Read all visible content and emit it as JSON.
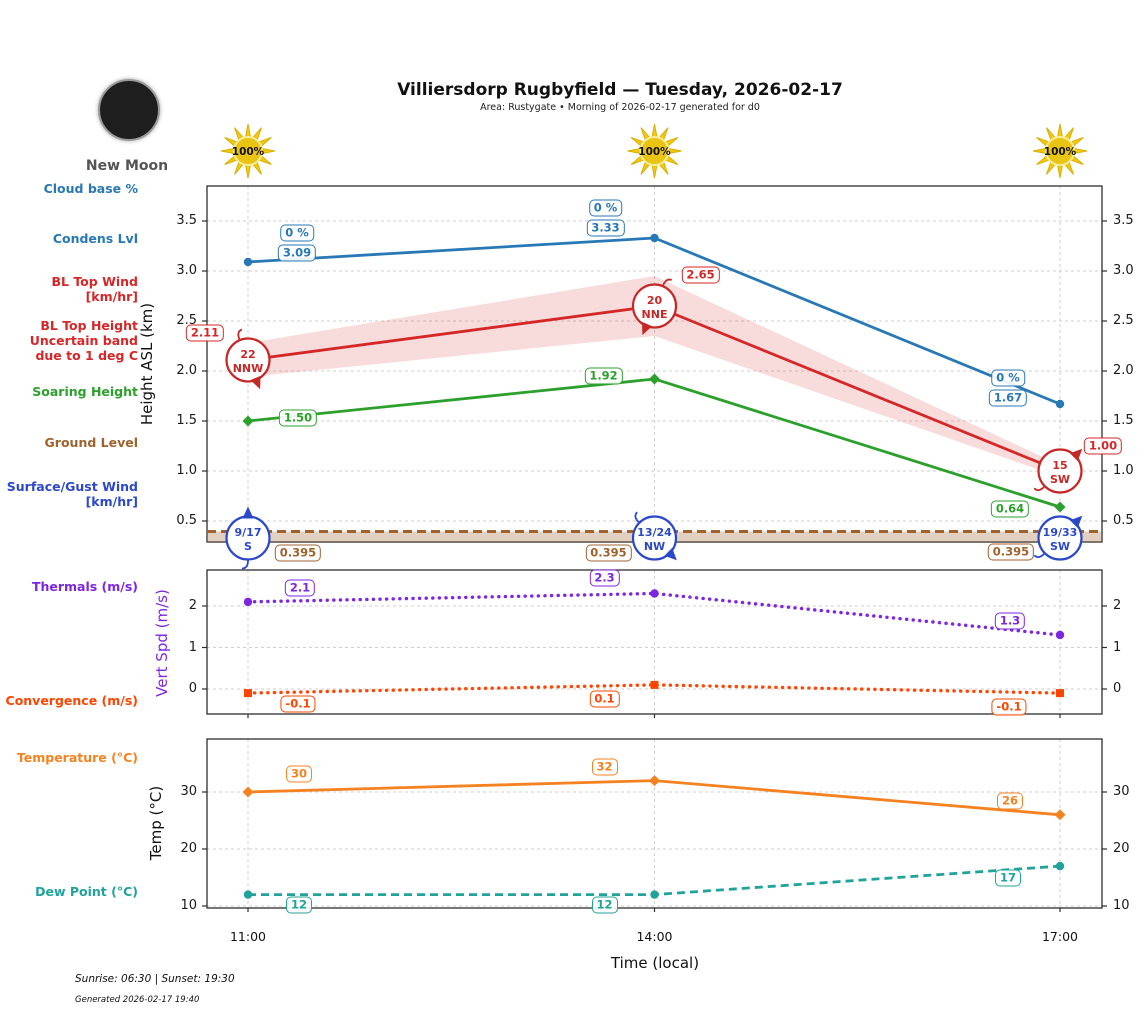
{
  "header": {
    "title": "Villiersdorp Rugbyfield — Tuesday, 2026-02-17",
    "subtitle": "Area: Rustygate • Morning of 2026-02-17 generated for d0"
  },
  "moon": {
    "label": "New Moon",
    "icon": "new-moon-icon"
  },
  "suns": {
    "icon": "sun-icon",
    "labels": [
      "100%",
      "100%",
      "100%"
    ]
  },
  "sidebar": {
    "items": [
      {
        "lines": [
          "Cloud base %"
        ],
        "color": "#2878b5"
      },
      {
        "lines": [
          "Condens Lvl"
        ],
        "color": "#2878b5"
      },
      {
        "lines": [
          "BL Top Wind",
          "[km/hr]"
        ],
        "color": "#d62728"
      },
      {
        "lines": [
          "BL Top Height",
          "Uncertain band",
          "due to 1 deg C"
        ],
        "color": "#d62728"
      },
      {
        "lines": [
          "Soaring Height"
        ],
        "color": "#2ca02c"
      },
      {
        "lines": [
          "Ground Level"
        ],
        "color": "#a0622d"
      },
      {
        "lines": [
          "Surface/Gust Wind",
          "[km/hr]"
        ],
        "color": "#2b48c8"
      },
      {
        "lines": [
          "Thermals (m/s)"
        ],
        "color": "#7d26e0"
      },
      {
        "lines": [
          "Convergence (m/s)"
        ],
        "color": "#ff4500"
      },
      {
        "lines": [
          "Temperature (°C)"
        ],
        "color": "#f58220"
      },
      {
        "lines": [
          "Dew Point (°C)"
        ],
        "color": "#20a39a"
      }
    ]
  },
  "footer": {
    "sunrise_sunset": "Sunrise: 06:30 | Sunset: 19:30",
    "generated": "Generated 2026-02-17 19:40"
  },
  "chart_data": [
    {
      "type": "line",
      "ylabel": "Height ASL (km)",
      "x": [
        "11:00",
        "14:00",
        "17:00"
      ],
      "yticks": [
        "0.5",
        "1.0",
        "1.5",
        "2.0",
        "2.5",
        "3.0",
        "3.5"
      ],
      "grid": true,
      "series": [
        {
          "name": "Condens Lvl",
          "color": "#2878b5",
          "marker": "circle",
          "line": "solid",
          "values": [
            3.09,
            3.33,
            1.67
          ],
          "point_labels": [
            "3.09",
            "3.33",
            "1.67"
          ],
          "cloud_base_pct": [
            "0 %",
            "0 %",
            "0 %"
          ]
        },
        {
          "name": "BL Top Height",
          "color": "#d62728",
          "line": "solid",
          "values": [
            2.11,
            2.65,
            1.0
          ],
          "point_labels": [
            "2.11",
            "2.65",
            "1.00"
          ],
          "uncertainty_upper": [
            2.28,
            2.95,
            1.06
          ],
          "uncertainty_lower": [
            1.94,
            2.35,
            0.94
          ]
        },
        {
          "name": "BL Top Wind [km/hr]",
          "color": "#c62828",
          "wind": [
            {
              "speed": "22",
              "dir": "NNW"
            },
            {
              "speed": "20",
              "dir": "NNE"
            },
            {
              "speed": "15",
              "dir": "SW"
            }
          ]
        },
        {
          "name": "Soaring Height",
          "color": "#2ca02c",
          "marker": "diamond",
          "line": "solid",
          "values": [
            1.5,
            1.92,
            0.64
          ],
          "point_labels": [
            "1.50",
            "1.92",
            "0.64"
          ]
        },
        {
          "name": "Ground Level",
          "color": "#a0622d",
          "line": "dashed",
          "values": [
            0.395,
            0.395,
            0.395
          ],
          "point_labels": [
            "0.395",
            "0.395",
            "0.395"
          ]
        },
        {
          "name": "Surface/Gust Wind [km/hr]",
          "color": "#2b48c8",
          "wind": [
            {
              "speed": "9/17",
              "dir": "S"
            },
            {
              "speed": "13/24",
              "dir": "NW"
            },
            {
              "speed": "19/33",
              "dir": "SW"
            }
          ]
        }
      ]
    },
    {
      "type": "line",
      "ylabel": "Vert Spd (m/s)",
      "x": [
        "11:00",
        "14:00",
        "17:00"
      ],
      "yticks": [
        "0",
        "1",
        "2"
      ],
      "grid": true,
      "series": [
        {
          "name": "Thermals (m/s)",
          "color": "#7d26e0",
          "marker": "circle",
          "line": "dotted",
          "values": [
            2.1,
            2.3,
            1.3
          ],
          "point_labels": [
            "2.1",
            "2.3",
            "1.3"
          ]
        },
        {
          "name": "Convergence (m/s)",
          "color": "#ff4500",
          "marker": "square",
          "line": "dotted",
          "values": [
            -0.1,
            0.1,
            -0.1
          ],
          "point_labels": [
            "-0.1",
            "0.1",
            "-0.1"
          ]
        }
      ]
    },
    {
      "type": "line",
      "ylabel": "Temp (°C)",
      "xlabel": "Time (local)",
      "x": [
        "11:00",
        "14:00",
        "17:00"
      ],
      "yticks": [
        "10",
        "20",
        "30"
      ],
      "grid": true,
      "series": [
        {
          "name": "Temperature (°C)",
          "color": "#f58220",
          "marker": "diamond",
          "line": "solid",
          "values": [
            30,
            32,
            26
          ],
          "point_labels": [
            "30",
            "32",
            "26"
          ]
        },
        {
          "name": "Dew Point (°C)",
          "color": "#20a39a",
          "marker": "circle",
          "line": "dashed",
          "values": [
            12,
            12,
            17
          ],
          "point_labels": [
            "12",
            "12",
            "17"
          ]
        }
      ]
    }
  ]
}
